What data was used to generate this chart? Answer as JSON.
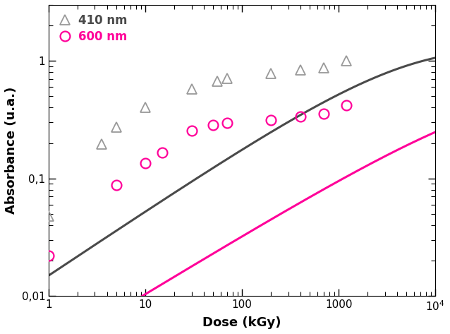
{
  "title": "",
  "xlabel": "Dose (kGy)",
  "ylabel": "Absorbance (u.a.)",
  "xlim": [
    1,
    10000
  ],
  "ylim": [
    0.01,
    3
  ],
  "legend_410": "410 nm",
  "legend_600": "600 nm",
  "color_410": "#4a4a4a",
  "color_600": "#FF0099",
  "marker_color_410": "#999999",
  "marker_color_600": "#FF0099",
  "data_410_x": [
    1.0,
    3.5,
    5.0,
    10.0,
    30.0,
    55.0,
    70.0,
    200.0,
    400.0,
    700.0,
    1200.0
  ],
  "data_410_y": [
    0.048,
    0.195,
    0.275,
    0.4,
    0.58,
    0.67,
    0.715,
    0.78,
    0.84,
    0.87,
    1.0
  ],
  "data_600_x": [
    1.0,
    5.0,
    10.0,
    15.0,
    30.0,
    50.0,
    70.0,
    200.0,
    400.0,
    700.0,
    1200.0
  ],
  "data_600_y": [
    0.022,
    0.088,
    0.135,
    0.165,
    0.255,
    0.285,
    0.295,
    0.315,
    0.335,
    0.355,
    0.42
  ],
  "fit_410_A": 1.25,
  "fit_410_k": 0.012,
  "fit_410_n": 0.55,
  "fit_600_A": 0.55,
  "fit_600_k": 0.006,
  "fit_600_n": 0.5,
  "figsize": [
    6.38,
    4.73
  ],
  "dpi": 100
}
